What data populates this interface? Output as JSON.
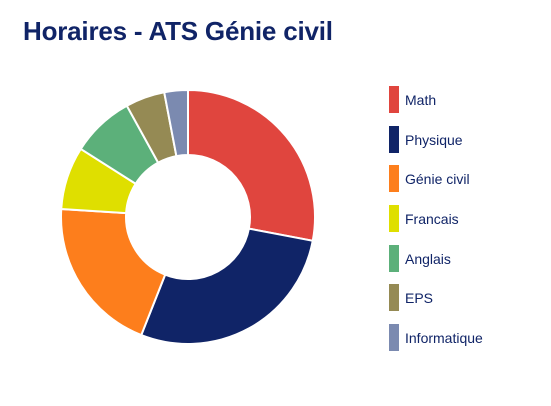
{
  "chart_data": {
    "type": "pie",
    "title": "Horaires - ATS Génie civil",
    "donut": true,
    "legend_position": "right",
    "categories": [
      "Math",
      "Physique",
      "Génie civil",
      "Francais",
      "Anglais",
      "EPS",
      "Informatique"
    ],
    "values": [
      28,
      28,
      20,
      8,
      8,
      5,
      3
    ],
    "colors": [
      "#E0453E",
      "#102467",
      "#FD7E1C",
      "#DFDF00",
      "#5CB07A",
      "#958A54",
      "#7B8AB0"
    ]
  }
}
